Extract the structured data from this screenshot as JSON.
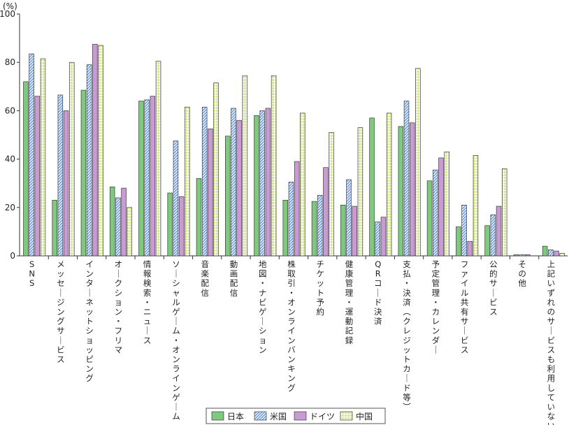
{
  "chart_data": {
    "type": "bar",
    "unit_label": "(%)",
    "ylim": [
      0,
      100
    ],
    "yticks": [
      0,
      20,
      40,
      60,
      80,
      100
    ],
    "grid": false,
    "legend_position": "bottom",
    "categories": [
      "SNS",
      "メッセージングサービス",
      "インターネットショッピング",
      "オークション・フリマ",
      "情報検索・ニュース",
      "ソーシャルゲーム・オンラインゲーム",
      "音楽配信",
      "動画配信",
      "地図・ナビゲーション",
      "株取引・オンラインバンキング",
      "チケット予約",
      "健康管理・運動記録",
      "QRコード決済",
      "支払・決済（クレジットカード等）",
      "予定管理・カレンダー",
      "ファイル共有サービス",
      "公的サービス",
      "その他",
      "上記いずれのサービスも利用していない"
    ],
    "series": [
      {
        "name": "日本",
        "color": "#7fc97f",
        "pattern": "solid",
        "values": [
          72,
          23,
          68.5,
          28.5,
          64,
          26,
          32,
          49.5,
          58,
          23,
          22.5,
          21,
          57,
          53.5,
          31,
          12,
          12.5,
          0.5,
          4
        ]
      },
      {
        "name": "米国",
        "color": "#5b8fd6",
        "pattern": "diagonal-hatch",
        "values": [
          83.5,
          66.5,
          79,
          24,
          64.5,
          47.5,
          61.5,
          61,
          60,
          30.5,
          25,
          31.5,
          14,
          64,
          35.5,
          21,
          17,
          0.5,
          2.5
        ]
      },
      {
        "name": "ドイツ",
        "color": "#c99ad4",
        "pattern": "solid",
        "values": [
          66,
          60,
          87.5,
          28,
          66,
          24.5,
          52.5,
          56,
          61,
          39,
          36.5,
          20.5,
          16,
          55,
          40.5,
          6,
          20.5,
          0.5,
          2
        ]
      },
      {
        "name": "中国",
        "color": "#d7eb7c",
        "pattern": "grid",
        "values": [
          81.5,
          80,
          87,
          20,
          80.5,
          61.5,
          71.5,
          74.5,
          74.5,
          59,
          51,
          53,
          59,
          77.5,
          43,
          41.5,
          36,
          0,
          1
        ]
      }
    ]
  }
}
